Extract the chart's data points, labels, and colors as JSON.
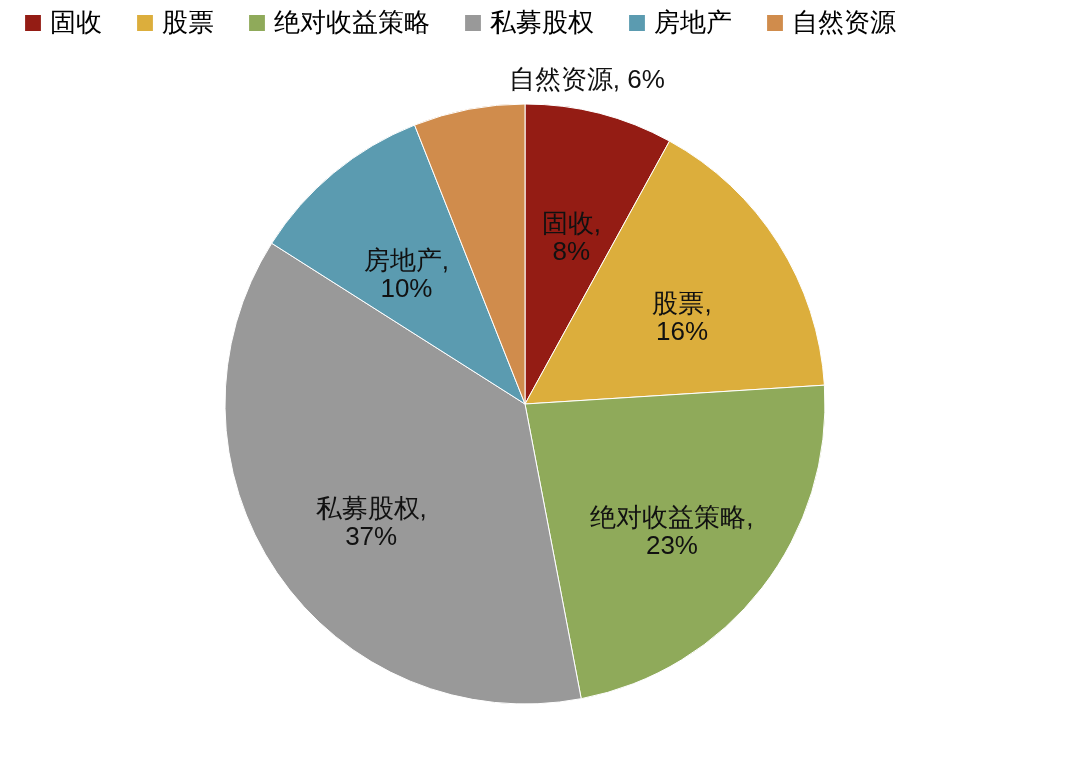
{
  "chart_data": {
    "type": "pie",
    "categories": [
      "固收",
      "股票",
      "绝对收益策略",
      "私募股权",
      "房地产",
      "自然资源"
    ],
    "values": [
      8,
      16,
      23,
      37,
      10,
      6
    ],
    "colors": [
      "#941c14",
      "#dcae3c",
      "#8faa5a",
      "#999999",
      "#5b9bb0",
      "#d08c4c"
    ],
    "value_labels": [
      "固收, 8%",
      "股票, 16%",
      "绝对收益策略, 23%",
      "私募股权, 37%",
      "房地产, 10%",
      "自然资源, 6%"
    ],
    "legend": "top"
  }
}
